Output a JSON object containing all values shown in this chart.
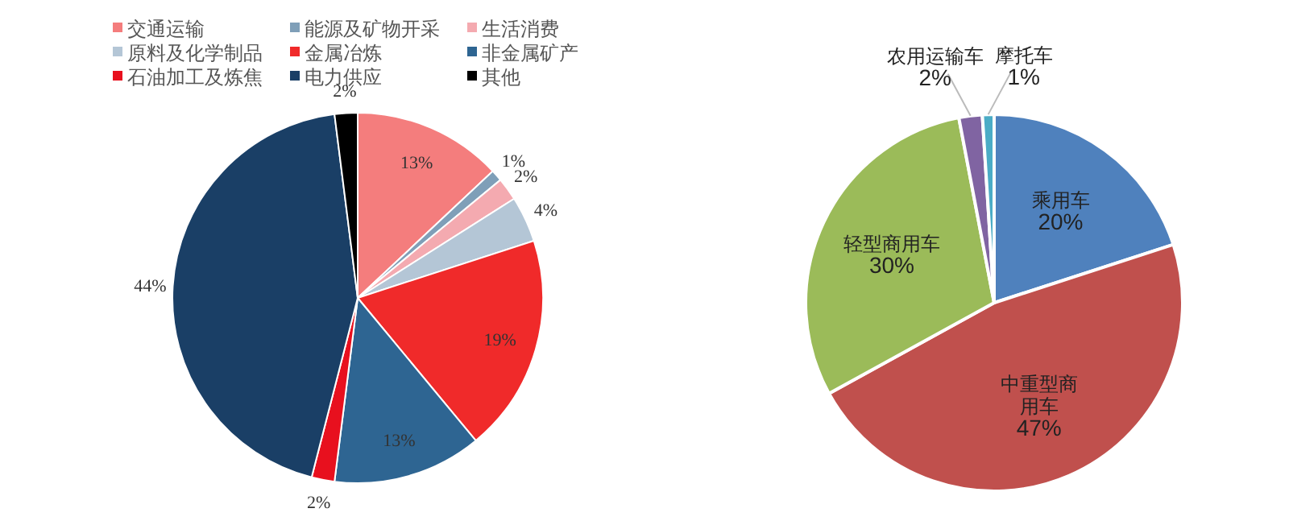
{
  "chart_data": [
    {
      "type": "pie",
      "categories": [
        "交通运输",
        "能源及矿物开采",
        "生活消费",
        "原料及化学制品",
        "金属冶炼",
        "非金属矿产",
        "石油加工及炼焦",
        "电力供应",
        "其他"
      ],
      "values": [
        13,
        1,
        2,
        4,
        19,
        13,
        2,
        44,
        2
      ],
      "value_labels": [
        "13%",
        "1%",
        "2%",
        "4%",
        "19%",
        "13%",
        "2%",
        "44%",
        "2%"
      ],
      "colors": [
        "#f47d7d",
        "#7f9fb8",
        "#f4aab0",
        "#b4c6d6",
        "#f02a2a",
        "#2e6592",
        "#e8101e",
        "#1a3f66",
        "#000000"
      ],
      "legend": "top"
    },
    {
      "type": "pie",
      "categories": [
        "乘用车",
        "中重型商用车",
        "轻型商用车",
        "农用运输车",
        "摩托车"
      ],
      "values": [
        20,
        47,
        30,
        2,
        1
      ],
      "value_labels": [
        "20%",
        "47%",
        "30%",
        "2%",
        "1%"
      ],
      "colors": [
        "#4f81bd",
        "#c0504d",
        "#9bbb59",
        "#8064a2",
        "#4bacc6"
      ],
      "legend": false
    }
  ]
}
